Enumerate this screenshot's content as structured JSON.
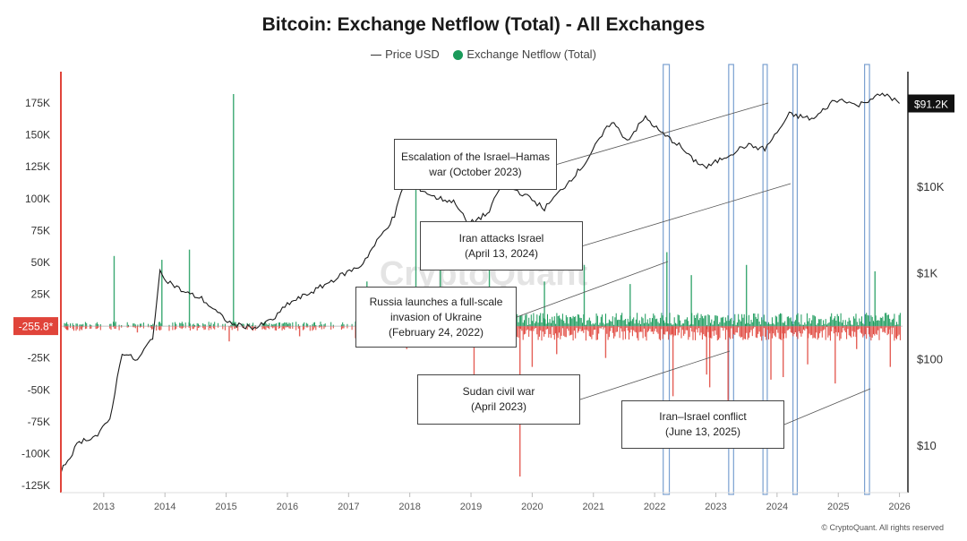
{
  "chart_data": {
    "type": "line",
    "title": "Bitcoin: Exchange Netflow (Total) - All Exchanges",
    "legend": [
      "Price USD",
      "Exchange Netflow (Total)"
    ],
    "legend_placement": "top-center",
    "x_ticks": [
      "2013",
      "2014",
      "2015",
      "2016",
      "2017",
      "2018",
      "2019",
      "2020",
      "2021",
      "2022",
      "2023",
      "2024",
      "2025",
      "2026"
    ],
    "left_axis": {
      "ticks": [
        "175K",
        "150K",
        "125K",
        "100K",
        "75K",
        "50K",
        "25K",
        "-25K",
        "-50K",
        "-75K",
        "-100K",
        "-125K"
      ],
      "range": [
        -130000,
        195000
      ],
      "current_label": "-255.8*"
    },
    "right_axis": {
      "ticks": [
        "$10K",
        "$1K",
        "$100",
        "$10"
      ],
      "scale": "log",
      "current_label": "$91.2K"
    },
    "colors": {
      "inflow": "#1a9a5a",
      "outflow": "#e0443a",
      "price": "#1a1a1a",
      "highlight": "#7aa0d0",
      "left_marker": "#e0443a"
    },
    "grid": false,
    "price_series": {
      "name": "Price USD",
      "x": [
        2012.3,
        2012.6,
        2012.9,
        2013.1,
        2013.3,
        2013.55,
        2013.8,
        2013.92,
        2014.05,
        2014.3,
        2014.6,
        2014.9,
        2015.1,
        2015.5,
        2015.8,
        2016.0,
        2016.5,
        2016.9,
        2017.2,
        2017.5,
        2017.75,
        2017.96,
        2018.1,
        2018.4,
        2018.75,
        2018.95,
        2019.3,
        2019.5,
        2019.8,
        2020.0,
        2020.2,
        2020.5,
        2020.85,
        2021.1,
        2021.3,
        2021.55,
        2021.85,
        2022.1,
        2022.4,
        2022.6,
        2022.85,
        2023.1,
        2023.5,
        2023.8,
        2024.0,
        2024.2,
        2024.6,
        2024.9,
        2025.1,
        2025.3,
        2025.6,
        2025.8,
        2026.0
      ],
      "y": [
        5,
        11,
        13,
        20,
        120,
        95,
        180,
        1000,
        800,
        600,
        500,
        320,
        250,
        230,
        300,
        430,
        650,
        950,
        1200,
        2500,
        4500,
        15000,
        10000,
        7500,
        6500,
        3600,
        5000,
        11000,
        8500,
        7000,
        5500,
        9500,
        18000,
        35000,
        57000,
        34000,
        63000,
        42000,
        30000,
        21000,
        16500,
        21000,
        30000,
        27000,
        42000,
        68000,
        60000,
        95000,
        102000,
        85000,
        110000,
        115000,
        91200
      ]
    },
    "netflow_series": {
      "name": "Exchange Netflow (Total)",
      "x": [
        2012.4,
        2013.17,
        2013.55,
        2013.95,
        2014.4,
        2015.05,
        2015.12,
        2016.2,
        2017.3,
        2017.95,
        2018.1,
        2018.5,
        2019.05,
        2019.3,
        2019.7,
        2019.8,
        2020.0,
        2020.2,
        2020.4,
        2020.85,
        2021.2,
        2021.6,
        2022.2,
        2022.3,
        2022.6,
        2022.85,
        2022.9,
        2023.2,
        2023.5,
        2023.9,
        2024.1,
        2024.5,
        2024.95,
        2025.3,
        2025.6,
        2025.85
      ],
      "values": [
        -3000,
        55000,
        -5000,
        52000,
        60000,
        -12000,
        182000,
        -8000,
        35000,
        -18000,
        108000,
        65000,
        -38000,
        45000,
        -10000,
        -118000,
        -32000,
        35000,
        -22000,
        48000,
        -25000,
        33000,
        58000,
        -55000,
        40000,
        -38000,
        -48000,
        -60000,
        48000,
        -42000,
        -40000,
        -30000,
        -45000,
        -18000,
        43000,
        -32000
      ]
    },
    "highlight_bands": [
      {
        "start": 2022.14,
        "end": 2022.24
      },
      {
        "start": 2023.21,
        "end": 2023.29
      },
      {
        "start": 2023.77,
        "end": 2023.84
      },
      {
        "start": 2024.26,
        "end": 2024.33
      },
      {
        "start": 2025.43,
        "end": 2025.51
      }
    ],
    "annotations": [
      {
        "lines": [
          "Escalation of the Israel–Hamas",
          "war (October 2023)"
        ],
        "target_x": 2023.8
      },
      {
        "lines": [
          "Iran attacks Israel",
          "(April 13, 2024)"
        ],
        "target_x": 2024.28
      },
      {
        "lines": [
          "Russia launches a full-scale",
          "invasion of Ukraine",
          "(February 24, 2022)"
        ],
        "target_x": 2022.15
      },
      {
        "lines": [
          "Sudan civil war",
          "(April 2023)"
        ],
        "target_x": 2023.24
      },
      {
        "lines": [
          "Iran–Israel conflict",
          "(June 13, 2025)"
        ],
        "target_x": 2025.45
      }
    ],
    "watermark": "CryptoQuant"
  },
  "copyright": "© CryptoQuant. All rights reserved"
}
